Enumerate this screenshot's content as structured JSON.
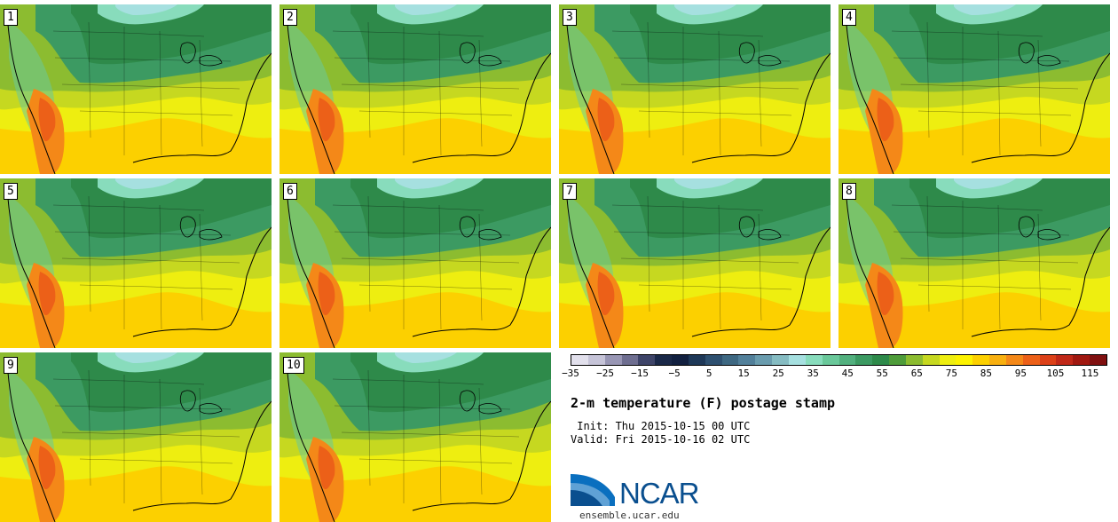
{
  "panels": [
    {
      "label": "1"
    },
    {
      "label": "2"
    },
    {
      "label": "3"
    },
    {
      "label": "4"
    },
    {
      "label": "5"
    },
    {
      "label": "6"
    },
    {
      "label": "7"
    },
    {
      "label": "8"
    },
    {
      "label": "9"
    },
    {
      "label": "10"
    }
  ],
  "colorbar": {
    "colors": [
      "#e2e0ec",
      "#c6c4d8",
      "#9896b4",
      "#6e6e90",
      "#3e4468",
      "#1a2848",
      "#122040",
      "#1e3858",
      "#2e5070",
      "#3e6882",
      "#52809a",
      "#6a9cae",
      "#86bcc2",
      "#a6e0e0",
      "#88dcbc",
      "#6ac89a",
      "#52b07e",
      "#3c9a62",
      "#2e8a4a",
      "#4e9c3a",
      "#8cbc30",
      "#c6d820",
      "#eeee10",
      "#fcf200",
      "#fcd000",
      "#f8b010",
      "#f48818",
      "#ec6018",
      "#dc4018",
      "#c02818",
      "#a01810",
      "#801010"
    ],
    "tick_labels": [
      "−35",
      "−25",
      "−15",
      "−5",
      "5",
      "15",
      "25",
      "35",
      "45",
      "55",
      "65",
      "75",
      "85",
      "95",
      "105",
      "115"
    ]
  },
  "title": "2-m temperature (F) postage stamp",
  "init_text": " Init: Thu 2015-10-15 00 UTC",
  "valid_text": "Valid: Fri 2015-10-16 02 UTC",
  "logo_text": "NCAR",
  "logo_url_text": "ensemble.ucar.edu",
  "accent_colors": {
    "logo_blue": "#0a4f8f"
  }
}
